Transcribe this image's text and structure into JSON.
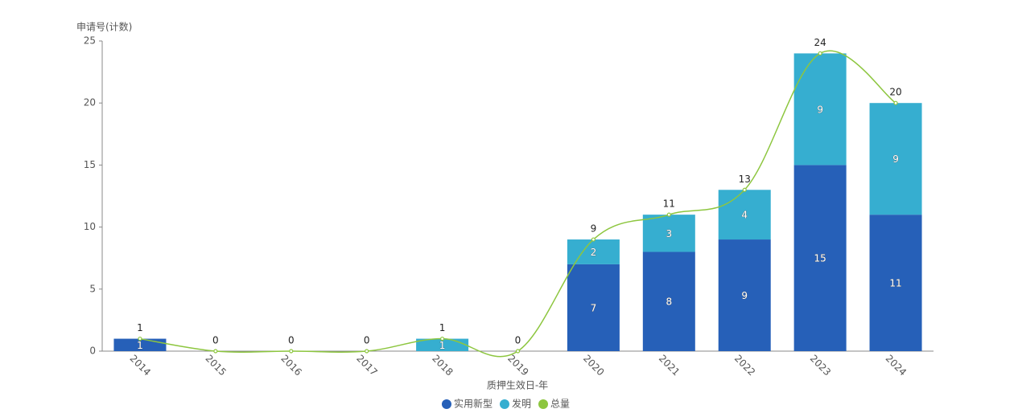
{
  "chart_data": {
    "type": "stacked-bar-line",
    "y_label": "申请号(计数)",
    "x_label": "质押生效日-年",
    "categories": [
      "2014",
      "2015",
      "2016",
      "2017",
      "2018",
      "2019",
      "2020",
      "2021",
      "2022",
      "2023",
      "2024"
    ],
    "series": [
      {
        "name": "实用新型",
        "color": "#2660b8",
        "kind": "bar",
        "values": [
          1,
          0,
          0,
          0,
          0,
          0,
          7,
          8,
          9,
          15,
          11
        ]
      },
      {
        "name": "发明",
        "color": "#36aed0",
        "kind": "bar",
        "values": [
          0,
          0,
          0,
          0,
          1,
          0,
          2,
          3,
          4,
          9,
          9
        ]
      },
      {
        "name": "总量",
        "color": "#8dc63f",
        "kind": "line",
        "values": [
          1,
          0,
          0,
          0,
          1,
          0,
          9,
          11,
          13,
          24,
          20
        ]
      }
    ],
    "ylim": [
      0,
      25
    ],
    "yticks": [
      0,
      5,
      10,
      15,
      20,
      25
    ],
    "grid": false
  }
}
